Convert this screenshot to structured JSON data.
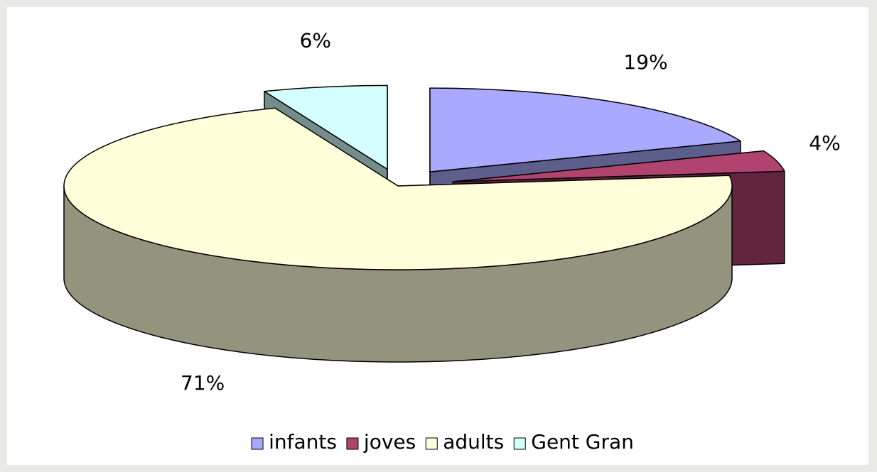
{
  "chart_data": {
    "type": "pie",
    "categories": [
      "infants",
      "joves",
      "adults",
      "Gent Gran"
    ],
    "values": [
      19,
      4,
      71,
      6
    ],
    "value_labels": [
      "19%",
      "4%",
      "71%",
      "6%"
    ],
    "colors": [
      "#a9aaff",
      "#b0446f",
      "#ffffda",
      "#d5ffff"
    ]
  }
}
